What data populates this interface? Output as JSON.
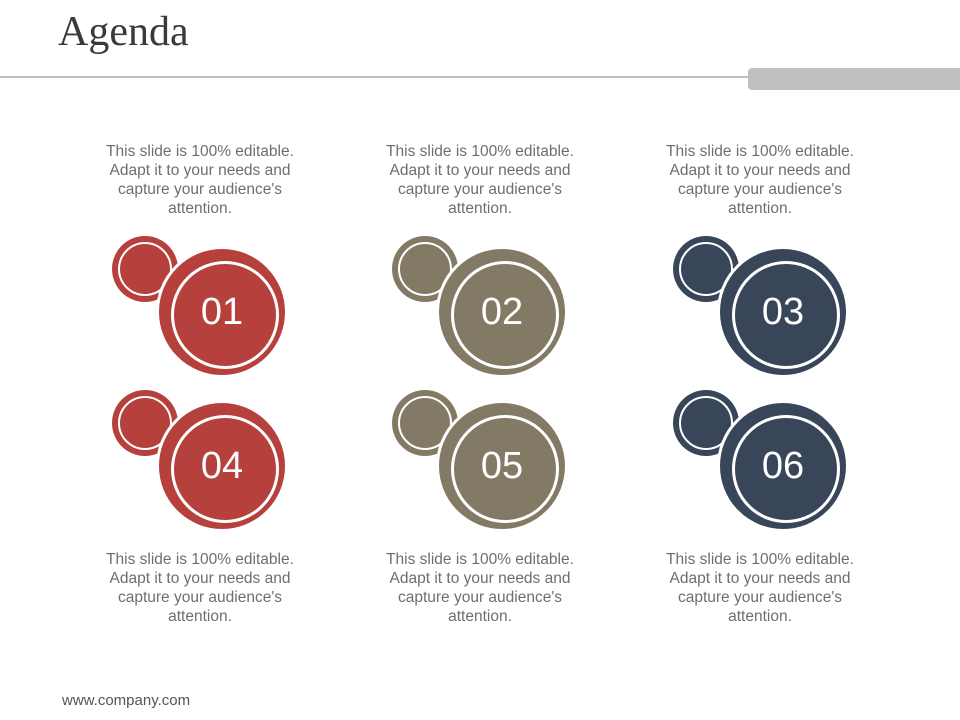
{
  "title": "Agenda",
  "colors": {
    "red": "#b5403c",
    "taupe": "#837a65",
    "navy": "#39465a",
    "rule": "#c0c0c0"
  },
  "items": [
    {
      "number": "01",
      "text": "This slide is 100% editable. Adapt it to your needs and capture your audience's attention."
    },
    {
      "number": "02",
      "text": "This slide is 100% editable. Adapt it to your needs and capture your audience's attention."
    },
    {
      "number": "03",
      "text": "This slide is 100% editable. Adapt it to your needs and capture your audience's attention."
    },
    {
      "number": "04",
      "text": "This slide is 100% editable. Adapt it to your needs and capture your audience's attention."
    },
    {
      "number": "05",
      "text": "This slide is 100% editable. Adapt it to your needs and capture your audience's attention."
    },
    {
      "number": "06",
      "text": "This slide is 100% editable. Adapt it to your needs and capture your audience's attention."
    }
  ],
  "footer": "www.company.com"
}
